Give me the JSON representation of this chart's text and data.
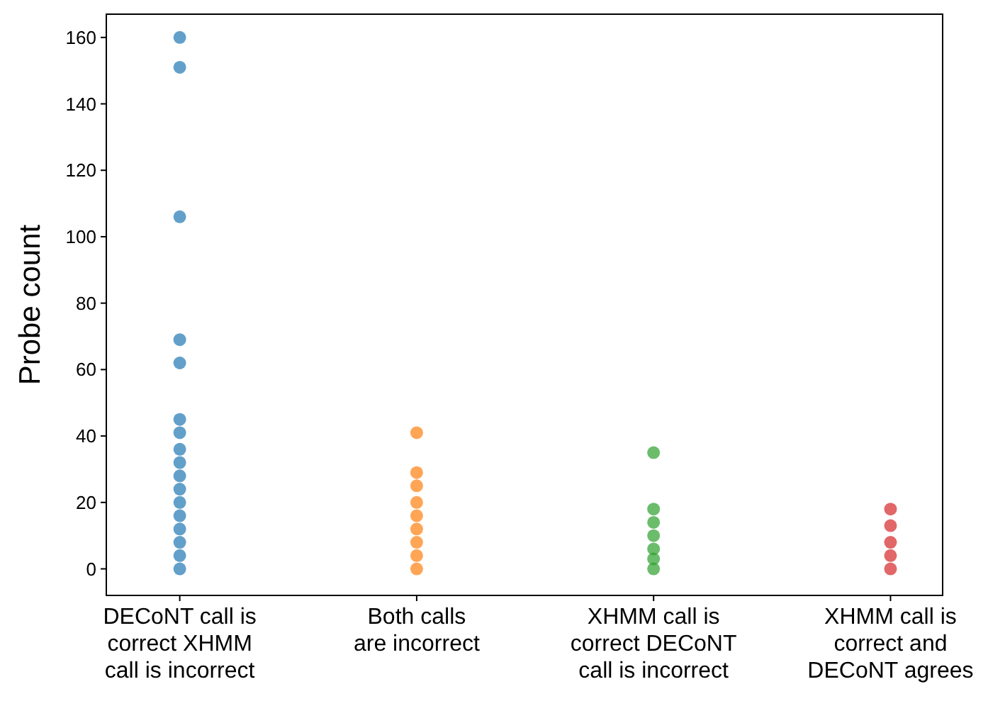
{
  "chart_data": {
    "type": "scatter",
    "ylabel": "Probe count",
    "marker": "circle",
    "grid": false,
    "categories": [
      "DECoNT call is\ncorrect XHMM\ncall is incorrect",
      "Both calls\nare incorrect",
      "XHMM call is\ncorrect DECoNT\ncall is incorrect",
      "XHMM call is\ncorrect and\nDECoNT agrees"
    ],
    "ylim": [
      -8,
      167
    ],
    "yticks": [
      0,
      20,
      40,
      60,
      80,
      100,
      120,
      140,
      160
    ],
    "series": [
      {
        "color": "#1f77b4",
        "x": [
          "DECoNT call is\ncorrect XHMM\ncall is incorrect",
          "DECoNT call is\ncorrect XHMM\ncall is incorrect",
          "DECoNT call is\ncorrect XHMM\ncall is incorrect",
          "DECoNT call is\ncorrect XHMM\ncall is incorrect",
          "DECoNT call is\ncorrect XHMM\ncall is incorrect",
          "DECoNT call is\ncorrect XHMM\ncall is incorrect",
          "DECoNT call is\ncorrect XHMM\ncall is incorrect",
          "DECoNT call is\ncorrect XHMM\ncall is incorrect",
          "DECoNT call is\ncorrect XHMM\ncall is incorrect",
          "DECoNT call is\ncorrect XHMM\ncall is incorrect",
          "DECoNT call is\ncorrect XHMM\ncall is incorrect",
          "DECoNT call is\ncorrect XHMM\ncall is incorrect",
          "DECoNT call is\ncorrect XHMM\ncall is incorrect",
          "DECoNT call is\ncorrect XHMM\ncall is incorrect",
          "DECoNT call is\ncorrect XHMM\ncall is incorrect",
          "DECoNT call is\ncorrect XHMM\ncall is incorrect",
          "DECoNT call is\ncorrect XHMM\ncall is incorrect"
        ],
        "values": [
          0,
          4,
          8,
          12,
          16,
          20,
          24,
          28,
          32,
          36,
          41,
          45,
          62,
          69,
          106,
          151,
          160
        ]
      },
      {
        "color": "#ff7f0e",
        "x": [
          "Both calls\nare incorrect",
          "Both calls\nare incorrect",
          "Both calls\nare incorrect",
          "Both calls\nare incorrect",
          "Both calls\nare incorrect",
          "Both calls\nare incorrect",
          "Both calls\nare incorrect",
          "Both calls\nare incorrect",
          "Both calls\nare incorrect"
        ],
        "values": [
          0,
          4,
          8,
          12,
          16,
          20,
          25,
          29,
          41
        ]
      },
      {
        "color": "#2ca02c",
        "x": [
          "XHMM call is\ncorrect DECoNT\ncall is incorrect",
          "XHMM call is\ncorrect DECoNT\ncall is incorrect",
          "XHMM call is\ncorrect DECoNT\ncall is incorrect",
          "XHMM call is\ncorrect DECoNT\ncall is incorrect",
          "XHMM call is\ncorrect DECoNT\ncall is incorrect",
          "XHMM call is\ncorrect DECoNT\ncall is incorrect",
          "XHMM call is\ncorrect DECoNT\ncall is incorrect"
        ],
        "values": [
          0,
          3,
          6,
          10,
          14,
          18,
          35
        ]
      },
      {
        "color": "#d62728",
        "x": [
          "XHMM call is\ncorrect and\nDECoNT agrees",
          "XHMM call is\ncorrect and\nDECoNT agrees",
          "XHMM call is\ncorrect and\nDECoNT agrees",
          "XHMM call is\ncorrect and\nDECoNT agrees",
          "XHMM call is\ncorrect and\nDECoNT agrees"
        ],
        "values": [
          0,
          4,
          8,
          13,
          18
        ]
      }
    ]
  }
}
